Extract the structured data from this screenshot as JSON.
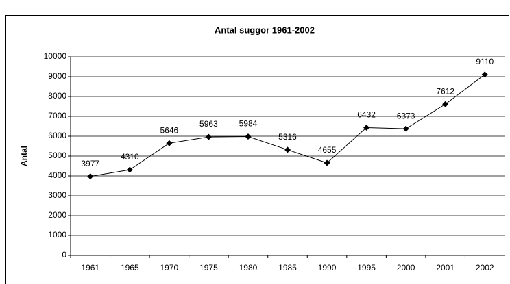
{
  "chart_data": {
    "type": "line",
    "title": "Antal suggor 1961-2002",
    "y_label": "Antal",
    "categories": [
      "1961",
      "1965",
      "1970",
      "1975",
      "1980",
      "1985",
      "1990",
      "1995",
      "2000",
      "2001",
      "2002"
    ],
    "series": [
      {
        "name": "Antal",
        "color": "#000000",
        "values": [
          3977,
          4310,
          5646,
          5963,
          5984,
          5316,
          4655,
          6432,
          6373,
          7612,
          9110
        ]
      }
    ],
    "ylim": [
      0,
      10000
    ],
    "yticks": [
      0,
      1000,
      2000,
      3000,
      4000,
      5000,
      6000,
      7000,
      8000,
      9000,
      10000
    ],
    "grid": true
  }
}
